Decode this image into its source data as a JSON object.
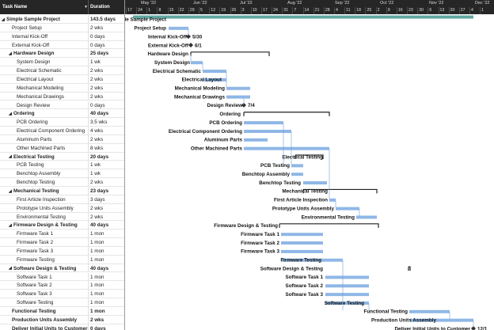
{
  "header": {
    "task_name": "Task Name",
    "duration": "Duration"
  },
  "timescale": {
    "months": [
      "May '22",
      "Jun '22",
      "Jul '22",
      "Aug '22",
      "Sep '22",
      "Oct '22",
      "Nov '22",
      "Dec '22"
    ],
    "days": [
      "17",
      "24",
      "1",
      "8",
      "15",
      "22",
      "29",
      "5",
      "12",
      "19",
      "26",
      "3",
      "10",
      "17",
      "24",
      "31",
      "7",
      "14",
      "21",
      "28",
      "4",
      "11",
      "18",
      "25",
      "2",
      "9",
      "16",
      "23",
      "30",
      "6",
      "13",
      "20",
      "27",
      "4",
      "1"
    ]
  },
  "tasks": [
    {
      "name": "Simple Sample Project",
      "duration": "143.5 days",
      "summary": true,
      "level": 0,
      "collapse": true
    },
    {
      "name": "Project Setup",
      "duration": "2 wks",
      "summary": false,
      "level": 1
    },
    {
      "name": "Internal Kick-Off",
      "duration": "0 days",
      "summary": false,
      "level": 1
    },
    {
      "name": "External Kick-Off",
      "duration": "0 days",
      "summary": false,
      "level": 1
    },
    {
      "name": "Hardware Design",
      "duration": "25 days",
      "summary": true,
      "level": 1,
      "collapse": true
    },
    {
      "name": "System Design",
      "duration": "1 wk",
      "summary": false,
      "level": 2
    },
    {
      "name": "Electrical Schematic",
      "duration": "2 wks",
      "summary": false,
      "level": 2
    },
    {
      "name": "Electrical Layout",
      "duration": "2 wks",
      "summary": false,
      "level": 2
    },
    {
      "name": "Mechanical Modeling",
      "duration": "2 wks",
      "summary": false,
      "level": 2
    },
    {
      "name": "Mechanical Drawings",
      "duration": "2 wks",
      "summary": false,
      "level": 2
    },
    {
      "name": "Design Review",
      "duration": "0 days",
      "summary": false,
      "level": 2
    },
    {
      "name": "Ordering",
      "duration": "40 days",
      "summary": true,
      "level": 1,
      "collapse": true
    },
    {
      "name": "PCB Ordering",
      "duration": "3.5 wks",
      "summary": false,
      "level": 2
    },
    {
      "name": "Electrical Component Ordering",
      "duration": "4 wks",
      "summary": false,
      "level": 2
    },
    {
      "name": "Aluminum Parts",
      "duration": "2 wks",
      "summary": false,
      "level": 2
    },
    {
      "name": "Other Machined Parts",
      "duration": "8 wks",
      "summary": false,
      "level": 2
    },
    {
      "name": "Electrical Testing",
      "duration": "20 days",
      "summary": true,
      "level": 1,
      "collapse": true
    },
    {
      "name": "PCB Testing",
      "duration": "1 wk",
      "summary": false,
      "level": 2
    },
    {
      "name": "Benchtop Assembly",
      "duration": "1 wk",
      "summary": false,
      "level": 2
    },
    {
      "name": "Benchtop Testing",
      "duration": "2 wks",
      "summary": false,
      "level": 2
    },
    {
      "name": "Mechanical Testing",
      "duration": "23 days",
      "summary": true,
      "level": 1,
      "collapse": true
    },
    {
      "name": "First Article Inspection",
      "duration": "3 days",
      "summary": false,
      "level": 2
    },
    {
      "name": "Prototype Units Assembly",
      "duration": "2 wks",
      "summary": false,
      "level": 2
    },
    {
      "name": "Environmental Testing",
      "duration": "2 wks",
      "summary": false,
      "level": 2
    },
    {
      "name": "Firmware Design & Testing",
      "duration": "40 days",
      "summary": true,
      "level": 1,
      "collapse": true
    },
    {
      "name": "Firmware Task 1",
      "duration": "1 mon",
      "summary": false,
      "level": 2
    },
    {
      "name": "Firmware Task 2",
      "duration": "1 mon",
      "summary": false,
      "level": 2
    },
    {
      "name": "Firmware Task 3",
      "duration": "1 mon",
      "summary": false,
      "level": 2
    },
    {
      "name": "Firmware Testing",
      "duration": "1 mon",
      "summary": false,
      "level": 2
    },
    {
      "name": "Software Design & Testing",
      "duration": "40 days",
      "summary": true,
      "level": 1,
      "collapse": true
    },
    {
      "name": "Software Task 1",
      "duration": "1 mon",
      "summary": false,
      "level": 2
    },
    {
      "name": "Software Task 2",
      "duration": "1 mon",
      "summary": false,
      "level": 2
    },
    {
      "name": "Software Task 3",
      "duration": "1 mon",
      "summary": false,
      "level": 2
    },
    {
      "name": "Software Testing",
      "duration": "1 mon",
      "summary": false,
      "level": 2
    },
    {
      "name": "Functional Testing",
      "duration": "1 mon",
      "summary": true,
      "level": 1
    },
    {
      "name": "Production Units Assembly",
      "duration": "2 wks",
      "summary": true,
      "level": 1
    },
    {
      "name": "Deliver Initial Units to Customer",
      "duration": "0 days",
      "summary": true,
      "level": 1
    }
  ],
  "milestone_dates": {
    "internal_kickoff": "5/30",
    "external_kickoff": "6/1",
    "design_review": "7/4",
    "deliver_units": "12/1"
  },
  "colors": {
    "task_bar": "#8fb7e6",
    "summary_bar": "#222222",
    "project_summary": "#5fa8a0",
    "header_bg": "#262626"
  }
}
